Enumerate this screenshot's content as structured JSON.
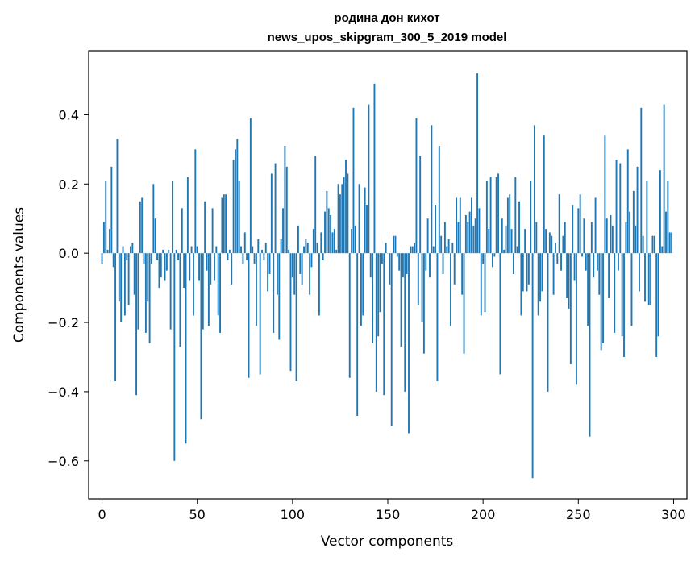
{
  "chart_data": {
    "type": "bar",
    "title_line1": "родина дон кихот",
    "title_line2": "news_upos_skipgram_300_5_2019 model",
    "xlabel": "Vector components",
    "ylabel": "Components values",
    "xlim": [
      -7,
      307
    ],
    "ylim": [
      -0.71,
      0.585
    ],
    "xticks": [
      0,
      50,
      100,
      150,
      200,
      250,
      300
    ],
    "xtick_labels": [
      "0",
      "50",
      "100",
      "150",
      "200",
      "250",
      "300"
    ],
    "yticks": [
      -0.6,
      -0.4,
      -0.2,
      0.0,
      0.2,
      0.4
    ],
    "ytick_labels": [
      "−0.6",
      "−0.4",
      "−0.2",
      "0.0",
      "0.2",
      "0.4"
    ],
    "grid": false,
    "bar_color": "#1f77b4",
    "x": "0..299 (component index)",
    "values": [
      -0.03,
      0.09,
      0.21,
      0.01,
      0.07,
      0.25,
      -0.04,
      -0.37,
      0.33,
      -0.14,
      -0.2,
      0.02,
      -0.18,
      -0.02,
      -0.15,
      0.02,
      0.03,
      -0.12,
      -0.41,
      -0.22,
      0.15,
      0.16,
      -0.03,
      -0.23,
      -0.14,
      -0.26,
      -0.03,
      0.2,
      0.1,
      -0.02,
      -0.1,
      -0.07,
      0.01,
      -0.08,
      -0.05,
      0.01,
      -0.22,
      0.21,
      -0.6,
      0.01,
      -0.02,
      -0.27,
      0.13,
      -0.1,
      -0.55,
      0.22,
      -0.08,
      0.02,
      -0.18,
      0.3,
      0.02,
      -0.08,
      -0.48,
      -0.22,
      0.15,
      -0.05,
      -0.21,
      -0.09,
      0.13,
      -0.08,
      0.02,
      -0.18,
      -0.23,
      0.16,
      0.17,
      0.17,
      -0.02,
      0.01,
      -0.09,
      0.27,
      0.3,
      0.33,
      0.21,
      0.02,
      -0.03,
      0.06,
      -0.02,
      -0.36,
      0.39,
      0.02,
      -0.03,
      -0.21,
      0.04,
      -0.35,
      0.01,
      -0.02,
      0.03,
      -0.11,
      -0.06,
      0.23,
      -0.23,
      0.26,
      -0.12,
      -0.25,
      0.04,
      0.13,
      0.31,
      0.25,
      0.01,
      -0.34,
      -0.07,
      -0.12,
      -0.37,
      0.08,
      -0.06,
      -0.09,
      0.02,
      0.04,
      0.03,
      -0.12,
      -0.04,
      0.07,
      0.28,
      0.03,
      -0.18,
      0.06,
      -0.02,
      0.12,
      0.18,
      0.13,
      0.11,
      0.06,
      0.07,
      0.01,
      0.2,
      0.17,
      0.2,
      0.22,
      0.27,
      0.23,
      -0.36,
      0.07,
      0.42,
      0.08,
      -0.47,
      0.2,
      -0.21,
      -0.18,
      0.19,
      0.14,
      0.43,
      -0.07,
      -0.26,
      0.49,
      -0.4,
      -0.24,
      -0.17,
      -0.03,
      -0.41,
      0.03,
      0.0,
      -0.09,
      -0.5,
      0.05,
      0.05,
      -0.01,
      -0.05,
      -0.27,
      -0.07,
      -0.4,
      -0.06,
      -0.52,
      0.02,
      0.02,
      0.03,
      0.39,
      -0.15,
      0.28,
      -0.2,
      -0.29,
      -0.05,
      0.1,
      -0.07,
      0.37,
      0.02,
      0.14,
      -0.37,
      0.31,
      0.05,
      -0.06,
      0.09,
      0.02,
      0.04,
      -0.21,
      0.03,
      -0.09,
      0.16,
      0.09,
      0.16,
      -0.12,
      -0.29,
      0.11,
      0.09,
      0.12,
      0.16,
      0.08,
      0.1,
      0.52,
      0.13,
      -0.18,
      -0.03,
      -0.17,
      0.21,
      0.07,
      0.22,
      -0.04,
      -0.01,
      0.22,
      0.23,
      -0.35,
      0.1,
      0.01,
      0.08,
      0.16,
      0.17,
      0.07,
      -0.06,
      0.22,
      0.02,
      0.15,
      -0.18,
      -0.11,
      0.07,
      -0.11,
      -0.09,
      0.21,
      -0.65,
      0.37,
      0.09,
      -0.18,
      -0.14,
      -0.11,
      0.34,
      0.07,
      -0.4,
      0.06,
      0.05,
      -0.12,
      0.03,
      -0.03,
      0.17,
      -0.05,
      0.05,
      0.09,
      -0.13,
      -0.16,
      -0.32,
      0.14,
      -0.08,
      -0.38,
      0.13,
      0.17,
      -0.01,
      0.1,
      -0.05,
      -0.21,
      -0.53,
      0.09,
      -0.07,
      0.16,
      -0.05,
      -0.12,
      -0.28,
      -0.26,
      0.34,
      0.1,
      -0.13,
      0.11,
      0.08,
      -0.23,
      0.27,
      -0.05,
      0.26,
      -0.24,
      -0.3,
      0.09,
      0.3,
      0.12,
      -0.21,
      0.18,
      0.08,
      0.25,
      -0.11,
      0.42,
      0.05,
      -0.14,
      0.21,
      -0.15,
      -0.15,
      0.05,
      0.05,
      -0.3,
      -0.24,
      0.24,
      0.02,
      0.43,
      0.12,
      0.21,
      0.06,
      0.06
    ]
  }
}
